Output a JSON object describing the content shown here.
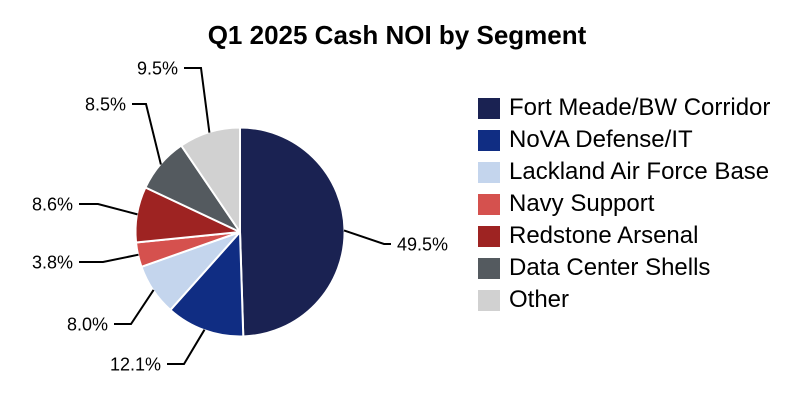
{
  "chart_data": {
    "type": "pie",
    "title": "Q1 2025 Cash NOI by Segment",
    "unit": "%",
    "direction": "clockwise",
    "start_angle": "12 o'clock",
    "background_color": "#ffffff",
    "wedge_border_color": "#ffffff",
    "leader_line_color": "#000000",
    "value_label_color": "#000000",
    "legend_position": "right",
    "slices": [
      {
        "label": "Fort Meade/BW Corridor",
        "value": 49.5,
        "pct_label": "49.5%",
        "color": "#1a2252"
      },
      {
        "label": "NoVA Defense/IT",
        "value": 12.1,
        "pct_label": "12.1%",
        "color": "#102d83"
      },
      {
        "label": "Lackland Air Force Base",
        "value": 8.0,
        "pct_label": "8.0%",
        "color": "#c4d5ed"
      },
      {
        "label": "Navy Support",
        "value": 3.8,
        "pct_label": "3.8%",
        "color": "#d5514e"
      },
      {
        "label": "Redstone Arsenal",
        "value": 8.6,
        "pct_label": "8.6%",
        "color": "#9e2322"
      },
      {
        "label": "Data Center Shells",
        "value": 8.5,
        "pct_label": "8.5%",
        "color": "#545a5f"
      },
      {
        "label": "Other",
        "value": 9.5,
        "pct_label": "9.5%",
        "color": "#d1d1d1"
      }
    ]
  }
}
